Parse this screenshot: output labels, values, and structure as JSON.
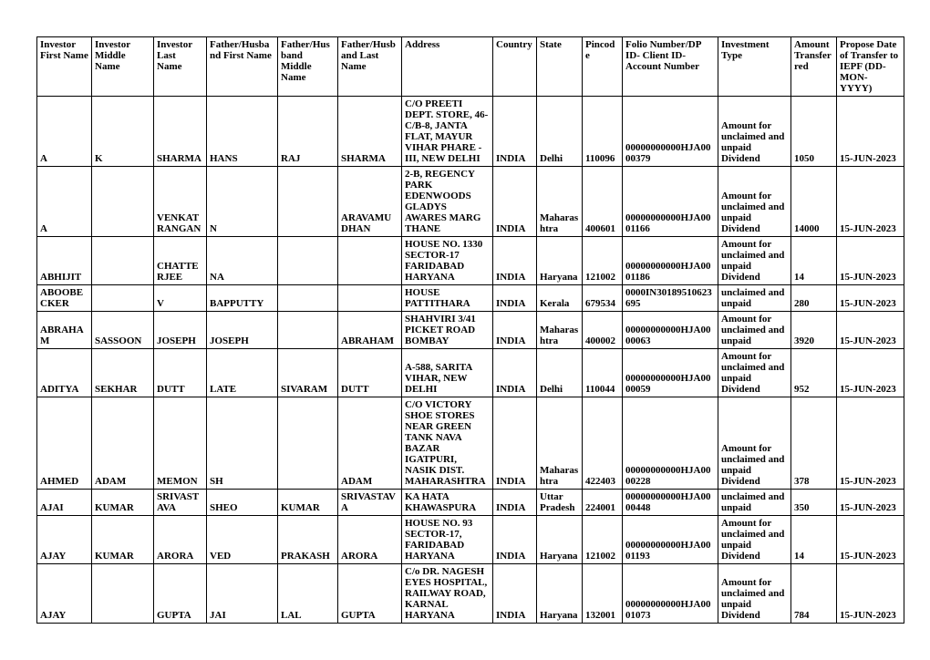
{
  "headers": {
    "c1": "Investor First Name",
    "c2": "Investor Middle Name",
    "c3": "Investor Last Name",
    "c4": "Father/Husband  First Name",
    "c5": "Father/Husband  Middle Name",
    "c6": "Father/Husband  Last Name",
    "c7": "Address",
    "c8": "Country",
    "c9": "State",
    "c10": "Pincode",
    "c11": "Folio Number/DP ID- Client ID- Account Number",
    "c12": "Investment Type",
    "c13": "Amount Transferred",
    "c14": "Propose Date of Transfer to IEPF (DD-MON- YYYY)"
  },
  "rows": [
    {
      "c1": "A",
      "c2": "K",
      "c3": "SHARMA",
      "c4": "HANS",
      "c5": "RAJ",
      "c6": "SHARMA",
      "c7": "C/O PREETI DEPT. STORE, 46-C/B-8, JANTA FLAT, MAYUR VIHAR PHARE -III, NEW DELHI",
      "c8": "INDIA",
      "c9": "Delhi",
      "c10": "110096",
      "c11": "00000000000HJA0000379",
      "c12": "Amount for unclaimed and unpaid Dividend",
      "c13": "1050",
      "c14": "15-JUN-2023"
    },
    {
      "c1": "A",
      "c2": "",
      "c3": "VENKAT RANGAN",
      "c4": "N",
      "c5": "",
      "c6": "ARAVAMUDHAN",
      "c7": "2-B, REGENCY PARK EDENWOODS GLADYS AWARES MARG THANE",
      "c8": "INDIA",
      "c9": "Maharashtra",
      "c10": "400601",
      "c11": "00000000000HJA0001166",
      "c12": "Amount for unclaimed and unpaid Dividend",
      "c13": "14000",
      "c14": "15-JUN-2023"
    },
    {
      "c1": "ABHIJIT",
      "c2": "",
      "c3": "CHATTERJEE",
      "c4": "NA",
      "c5": "",
      "c6": "",
      "c7": "HOUSE NO. 1330 SECTOR-17 FARIDABAD HARYANA",
      "c8": "INDIA",
      "c9": "Haryana",
      "c10": "121002",
      "c11": "00000000000HJA0001186",
      "c12": "Amount for unclaimed and unpaid Dividend",
      "c13": "14",
      "c14": "15-JUN-2023"
    },
    {
      "c1": "ABOOBECKER",
      "c2": "",
      "c3": "V",
      "c4": "BAPPUTTY",
      "c5": "",
      "c6": "",
      "c7": "HOUSE PATTITHARA",
      "c8": "INDIA",
      "c9": "Kerala",
      "c10": "679534",
      "c11": "0000IN30189510623695",
      "c12": "unclaimed and unpaid",
      "c13": "280",
      "c14": "15-JUN-2023"
    },
    {
      "c1": "ABRAHAM",
      "c2": "SASSOON",
      "c3": "JOSEPH",
      "c4": "JOSEPH",
      "c5": "",
      "c6": "ABRAHAM",
      "c7": "SHAHVIRI 3/41 PICKET ROAD BOMBAY",
      "c8": "INDIA",
      "c9": "Maharashtra",
      "c10": "400002",
      "c11": "00000000000HJA0000063",
      "c12": "Amount for unclaimed and unpaid",
      "c13": "3920",
      "c14": "15-JUN-2023"
    },
    {
      "c1": "ADITYA",
      "c2": "SEKHAR",
      "c3": "DUTT",
      "c4": "LATE",
      "c5": "SIVARAM",
      "c6": "DUTT",
      "c7": "A-588, SARITA VIHAR, NEW DELHI",
      "c8": "INDIA",
      "c9": "Delhi",
      "c10": "110044",
      "c11": "00000000000HJA0000059",
      "c12": "Amount for unclaimed and unpaid Dividend",
      "c13": "952",
      "c14": "15-JUN-2023"
    },
    {
      "c1": "AHMED",
      "c2": "ADAM",
      "c3": "MEMON",
      "c4": "SH",
      "c5": "",
      "c6": "ADAM",
      "c7": "C/O VICTORY SHOE STORES NEAR GREEN TANK NAVA BAZAR IGATPURI, NASIK DIST. MAHARASHTRA",
      "c8": "INDIA",
      "c9": "Maharashtra",
      "c10": "422403",
      "c11": "00000000000HJA0000228",
      "c12": "Amount for unclaimed and unpaid Dividend",
      "c13": "378",
      "c14": "15-JUN-2023"
    },
    {
      "c1": "AJAI",
      "c2": "KUMAR",
      "c3": "SRIVASTAVA",
      "c4": "SHEO",
      "c5": "KUMAR",
      "c6": "SRIVASTAVA",
      "c7": "KA HATA KHAWASPURA",
      "c8": "INDIA",
      "c9": "Uttar Pradesh",
      "c10": "224001",
      "c11": "00000000000HJA0000448",
      "c12": "unclaimed and unpaid",
      "c13": "350",
      "c14": "15-JUN-2023"
    },
    {
      "c1": "AJAY",
      "c2": "KUMAR",
      "c3": "ARORA",
      "c4": "VED",
      "c5": "PRAKASH",
      "c6": "ARORA",
      "c7": "HOUSE NO. 93 SECTOR-17, FARIDABAD HARYANA",
      "c8": "INDIA",
      "c9": "Haryana",
      "c10": "121002",
      "c11": "00000000000HJA0001193",
      "c12": "Amount for unclaimed and unpaid Dividend",
      "c13": "14",
      "c14": "15-JUN-2023"
    },
    {
      "c1": "AJAY",
      "c2": "",
      "c3": "GUPTA",
      "c4": "JAI",
      "c5": "LAL",
      "c6": "GUPTA",
      "c7": "C/o DR. NAGESH EYES HOSPITAL, RAILWAY ROAD, KARNAL HARYANA",
      "c8": "INDIA",
      "c9": "Haryana",
      "c10": "132001",
      "c11": "00000000000HJA0001073",
      "c12": "Amount for unclaimed and unpaid Dividend",
      "c13": "784",
      "c14": "15-JUN-2023"
    }
  ]
}
